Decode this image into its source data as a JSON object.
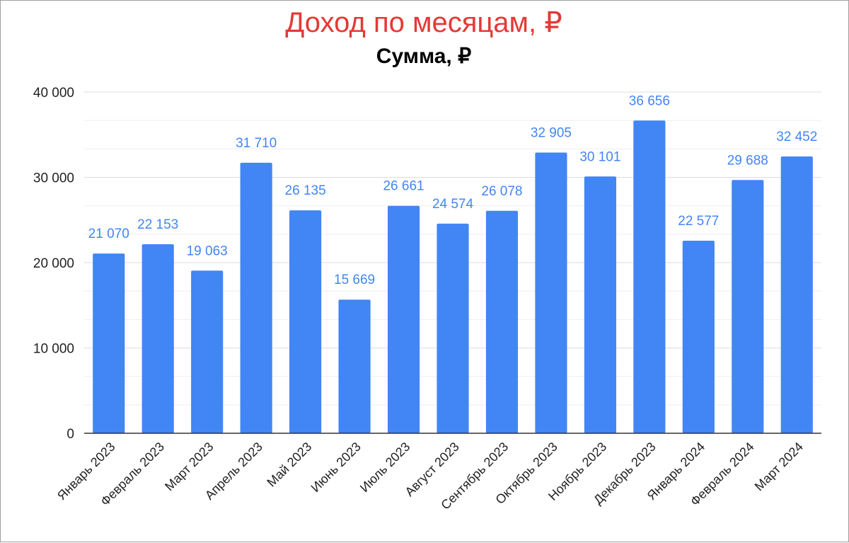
{
  "chart_data": {
    "type": "bar",
    "title": "Доход по месяцам, ₽",
    "subtitle": "Сумма, ₽",
    "categories": [
      "Январь 2023",
      "Февраль 2023",
      "Март 2023",
      "Апрель 2023",
      "Май 2023",
      "Июнь 2023",
      "Июль 2023",
      "Август 2023",
      "Сентябрь 2023",
      "Октябрь 2023",
      "Ноябрь 2023",
      "Декабрь 2023",
      "Январь 2024",
      "Февраль 2024",
      "Март 2024"
    ],
    "values": [
      21070,
      22153,
      19063,
      31710,
      26135,
      15669,
      26661,
      24574,
      26078,
      32905,
      30101,
      36656,
      22577,
      29688,
      32452
    ],
    "data_labels": [
      "21 070",
      "22 153",
      "19 063",
      "31 710",
      "26 135",
      "15 669",
      "26 661",
      "24 574",
      "26 078",
      "32 905",
      "30 101",
      "36 656",
      "22 577",
      "29 688",
      "32 452"
    ],
    "y_ticks": [
      0,
      10000,
      20000,
      30000,
      40000
    ],
    "y_tick_labels": [
      "0",
      "10 000",
      "20 000",
      "30 000",
      "40 000"
    ],
    "ylim": [
      0,
      40000
    ],
    "minor_grid_step": 3333.33,
    "grid": true,
    "legend": "none",
    "colors": {
      "bar": "#4285f4",
      "data_label": "#4285f4",
      "title": "#e53935",
      "subtitle": "#000000",
      "gridline": "#dddddd",
      "axis": "#333333"
    }
  }
}
